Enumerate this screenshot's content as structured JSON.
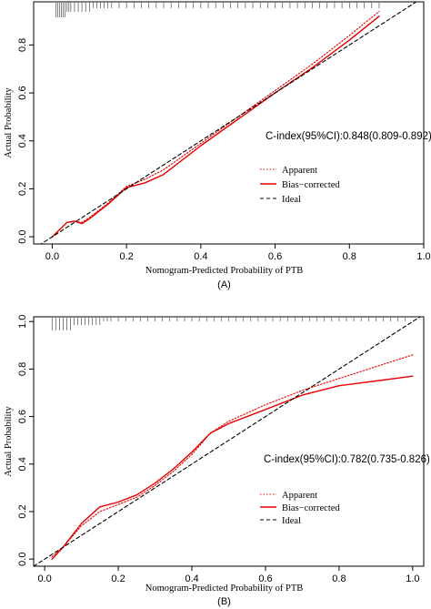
{
  "chart_data": [
    {
      "type": "line",
      "panel_label": "(A)",
      "xlabel": "Nomogram-Predicted Probability of PTB",
      "ylabel": "Actual Probability",
      "xlim": [
        -0.05,
        1.0
      ],
      "ylim": [
        -0.03,
        0.98
      ],
      "x_ticks": [
        "0.0",
        "0.2",
        "0.4",
        "0.6",
        "0.8",
        "1.0"
      ],
      "y_ticks": [
        "0.0",
        "0.2",
        "0.4",
        "0.6",
        "0.8"
      ],
      "annotation": "C-index(95%CI):0.848(0.809-0.892)",
      "legend": {
        "position": "right",
        "entries": [
          "Apparent",
          "Bias−corrected",
          "Ideal"
        ]
      },
      "colors": {
        "apparent": "#e60000",
        "bias_corrected": "#e60000",
        "ideal": "#000000"
      },
      "rug_x": [
        0.01,
        0.015,
        0.02,
        0.025,
        0.03,
        0.035,
        0.04,
        0.045,
        0.05,
        0.06,
        0.07,
        0.08,
        0.09,
        0.1,
        0.11,
        0.12,
        0.13,
        0.14,
        0.15,
        0.16,
        0.18,
        0.2,
        0.22,
        0.24,
        0.26,
        0.28,
        0.3,
        0.32,
        0.34,
        0.36,
        0.38,
        0.4,
        0.42,
        0.44,
        0.46,
        0.48,
        0.5,
        0.52,
        0.54,
        0.56,
        0.58,
        0.6,
        0.62,
        0.64,
        0.66,
        0.68,
        0.7,
        0.72,
        0.74,
        0.76,
        0.78,
        0.8,
        0.82,
        0.84,
        0.86,
        0.88
      ],
      "series": [
        {
          "name": "Apparent",
          "style": "dotted",
          "x": [
            0.0,
            0.02,
            0.04,
            0.06,
            0.08,
            0.1,
            0.15,
            0.2,
            0.25,
            0.3,
            0.4,
            0.5,
            0.6,
            0.7,
            0.8,
            0.88
          ],
          "y": [
            0.0,
            0.03,
            0.06,
            0.065,
            0.06,
            0.08,
            0.14,
            0.21,
            0.24,
            0.28,
            0.39,
            0.5,
            0.61,
            0.72,
            0.84,
            0.94
          ]
        },
        {
          "name": "Bias−corrected",
          "style": "solid",
          "x": [
            0.0,
            0.02,
            0.04,
            0.06,
            0.08,
            0.1,
            0.15,
            0.2,
            0.25,
            0.3,
            0.4,
            0.5,
            0.6,
            0.7,
            0.8,
            0.88
          ],
          "y": [
            0.0,
            0.03,
            0.06,
            0.065,
            0.055,
            0.075,
            0.135,
            0.205,
            0.225,
            0.26,
            0.38,
            0.49,
            0.6,
            0.705,
            0.82,
            0.92
          ]
        },
        {
          "name": "Ideal",
          "style": "dashed",
          "x": [
            -0.05,
            1.0
          ],
          "y": [
            -0.05,
            1.0
          ]
        }
      ]
    },
    {
      "type": "line",
      "panel_label": "(B)",
      "xlabel": "Nomogram-Predicted Probability of PTB",
      "ylabel": "Actual Probability",
      "xlim": [
        -0.03,
        1.03
      ],
      "ylim": [
        -0.03,
        1.02
      ],
      "x_ticks": [
        "0.0",
        "0.2",
        "0.4",
        "0.6",
        "0.8",
        "1.0"
      ],
      "y_ticks": [
        "0.0",
        "0.2",
        "0.4",
        "0.6",
        "0.8",
        "1.0"
      ],
      "annotation": "C-index(95%CI):0.782(0.735-0.826)",
      "legend": {
        "position": "right",
        "entries": [
          "Apparent",
          "Bias−corrected",
          "Ideal"
        ]
      },
      "colors": {
        "apparent": "#e60000",
        "bias_corrected": "#e60000",
        "ideal": "#000000"
      },
      "rug_x": [
        0.02,
        0.03,
        0.04,
        0.05,
        0.06,
        0.07,
        0.08,
        0.09,
        0.1,
        0.11,
        0.12,
        0.13,
        0.14,
        0.15,
        0.16,
        0.17,
        0.18,
        0.2,
        0.22,
        0.24,
        0.26,
        0.28,
        0.3,
        0.32,
        0.34,
        0.36,
        0.38,
        0.4,
        0.42,
        0.44,
        0.46,
        0.48,
        0.5,
        0.52,
        0.54,
        0.56,
        0.58,
        0.6,
        0.62,
        0.64,
        0.66,
        0.68,
        0.7,
        0.72,
        0.74,
        0.76,
        0.78,
        0.8,
        0.82,
        0.84,
        0.86,
        0.88,
        0.9,
        0.92,
        0.94,
        0.96,
        0.98
      ],
      "series": [
        {
          "name": "Apparent",
          "style": "dotted",
          "x": [
            0.02,
            0.05,
            0.1,
            0.15,
            0.2,
            0.25,
            0.3,
            0.35,
            0.4,
            0.45,
            0.5,
            0.6,
            0.7,
            0.8,
            0.9,
            1.0
          ],
          "y": [
            0.01,
            0.05,
            0.14,
            0.2,
            0.23,
            0.26,
            0.31,
            0.37,
            0.44,
            0.53,
            0.58,
            0.65,
            0.71,
            0.76,
            0.81,
            0.86
          ]
        },
        {
          "name": "Bias−corrected",
          "style": "solid",
          "x": [
            0.02,
            0.05,
            0.1,
            0.15,
            0.2,
            0.25,
            0.3,
            0.35,
            0.4,
            0.45,
            0.5,
            0.6,
            0.7,
            0.8,
            0.9,
            1.0
          ],
          "y": [
            0.0,
            0.05,
            0.15,
            0.22,
            0.24,
            0.27,
            0.32,
            0.38,
            0.45,
            0.53,
            0.57,
            0.63,
            0.69,
            0.73,
            0.75,
            0.77
          ]
        },
        {
          "name": "Ideal",
          "style": "dashed",
          "x": [
            -0.03,
            1.03
          ],
          "y": [
            -0.03,
            1.03
          ]
        }
      ]
    }
  ]
}
